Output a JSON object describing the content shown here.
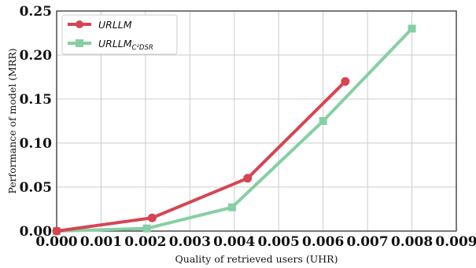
{
  "chart_data": {
    "type": "line",
    "title": "",
    "xlabel": "Quality of retrieved users (UHR)",
    "ylabel": "Performance of model (MRR)",
    "xlim": [
      0.0,
      0.009
    ],
    "ylim": [
      0.0,
      0.25
    ],
    "xticks": [
      "0.000",
      "0.001",
      "0.002",
      "0.003",
      "0.004",
      "0.005",
      "0.006",
      "0.007",
      "0.008",
      "0.009"
    ],
    "yticks": [
      "0.00",
      "0.05",
      "0.10",
      "0.15",
      "0.20",
      "0.25"
    ],
    "grid": true,
    "legend_position": "top-left",
    "series": [
      {
        "name": "URLLM",
        "color": "#d64452",
        "marker": "circle",
        "x": [
          0.0,
          0.00215,
          0.0043,
          0.0065
        ],
        "y": [
          0.0,
          0.015,
          0.06,
          0.17
        ]
      },
      {
        "name_main": "URLLM",
        "name_sub": "C²DSR",
        "color": "#86cfa2",
        "marker": "square",
        "x": [
          0.0,
          0.00203,
          0.00395,
          0.006,
          0.008
        ],
        "y": [
          0.0,
          0.003,
          0.027,
          0.125,
          0.23
        ]
      }
    ]
  }
}
